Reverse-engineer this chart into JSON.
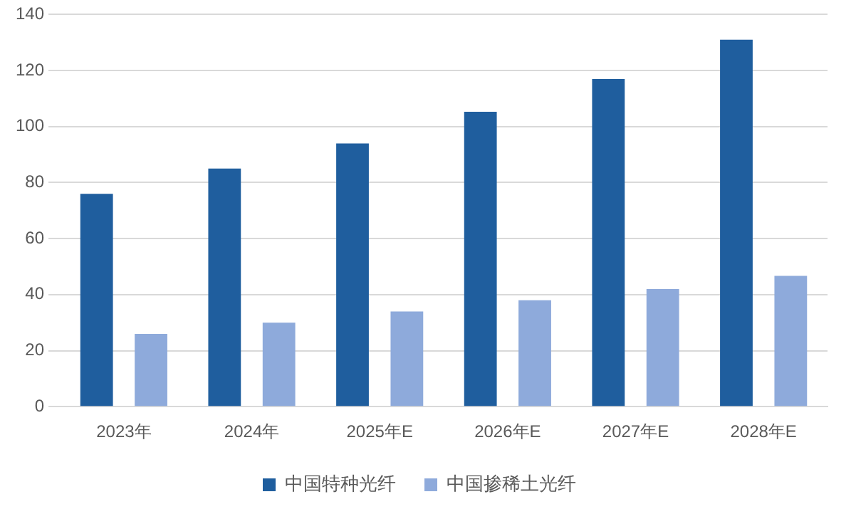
{
  "chart_data": {
    "type": "bar",
    "categories": [
      "2023年",
      "2024年",
      "2025年E",
      "2026年E",
      "2027年E",
      "2028年E"
    ],
    "series": [
      {
        "name": "中国特种光纤",
        "color": "#1f5e9e",
        "values": [
          76,
          85,
          94,
          105.3,
          117,
          131
        ]
      },
      {
        "name": "中国掺稀土光纤",
        "color": "#8eaadb",
        "values": [
          26,
          30,
          34,
          38,
          42,
          46.7
        ]
      }
    ],
    "ylim": [
      0,
      140
    ],
    "yticks": [
      0,
      20,
      40,
      60,
      80,
      100,
      120,
      140
    ],
    "grid": "y",
    "legend": "bottom"
  }
}
